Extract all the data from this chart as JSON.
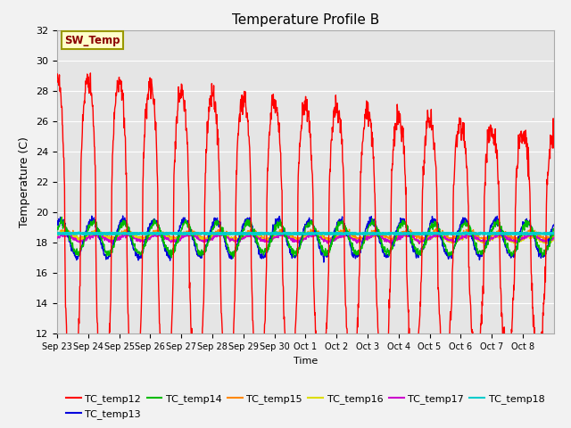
{
  "title": "Temperature Profile B",
  "xlabel": "Time",
  "ylabel": "Temperature (C)",
  "ylim": [
    12,
    32
  ],
  "yticks": [
    12,
    14,
    16,
    18,
    20,
    22,
    24,
    26,
    28,
    30,
    32
  ],
  "bg_color": "#e5e5e5",
  "fig_bg_color": "#f2f2f2",
  "grid_color": "#ffffff",
  "series_colors": {
    "TC_temp12": "#ff0000",
    "TC_temp13": "#0000dd",
    "TC_temp14": "#00bb00",
    "TC_temp15": "#ff8800",
    "TC_temp16": "#dddd00",
    "TC_temp17": "#cc00cc",
    "TC_temp18": "#00cccc"
  },
  "sw_temp_label": "SW_Temp",
  "sw_temp_value": 18.6,
  "num_days": 16,
  "xtick_labels": [
    "Sep 23",
    "Sep 24",
    "Sep 25",
    "Sep 26",
    "Sep 27",
    "Sep 28",
    "Sep 29",
    "Sep 30",
    "Oct 1",
    "Oct 2",
    "Oct 3",
    "Oct 4",
    "Oct 5",
    "Oct 6",
    "Oct 7",
    "Oct 8"
  ]
}
